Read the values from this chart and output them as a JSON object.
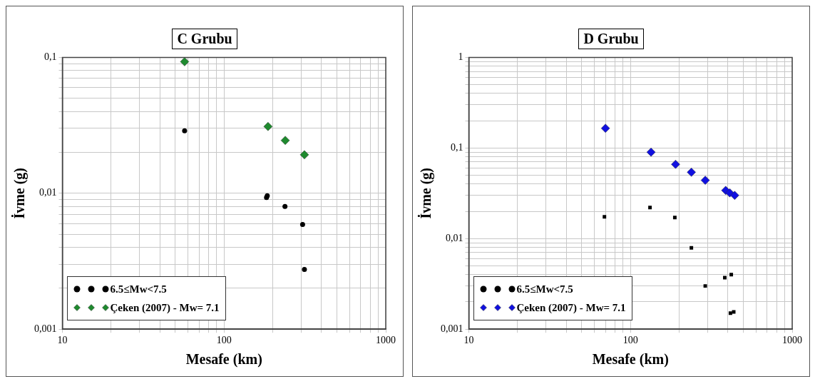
{
  "chart_data": [
    {
      "type": "scatter",
      "title": "C Grubu",
      "xlabel": "Mesafe (km)",
      "ylabel": "İvme (g)",
      "log": "xy",
      "grid": true,
      "legend": "bottom left",
      "xlim": [
        10,
        1000
      ],
      "xticks": [
        10,
        100,
        1000
      ],
      "ylim": [
        0.001,
        0.1
      ],
      "yticks": [
        {
          "value": 0.001,
          "label": "0,001"
        },
        {
          "value": 0.01,
          "label": "0,01"
        },
        {
          "value": 0.1,
          "label": "0,1"
        }
      ],
      "series": [
        {
          "name": "6.5≤Mw<7.5",
          "color": "#000000",
          "marker": "circle",
          "x": [
            57,
            183,
            185,
            238,
            306,
            314
          ],
          "values": [
            0.0288,
            0.0093,
            0.0096,
            0.008,
            0.0059,
            0.00275
          ]
        },
        {
          "name": "Çeken (2007) - Mw= 7.1",
          "color": "#1e8a2e",
          "marker": "diamond",
          "x": [
            57,
            187,
            239,
            314
          ],
          "values": [
            0.093,
            0.031,
            0.0245,
            0.0192
          ]
        }
      ]
    },
    {
      "type": "scatter",
      "title": "D Grubu",
      "xlabel": "Mesafe (km)",
      "ylabel": "İvme (g)",
      "log": "xy",
      "grid": true,
      "legend": "bottom left",
      "xlim": [
        10,
        1000
      ],
      "xticks": [
        10,
        100,
        1000
      ],
      "ylim": [
        0.001,
        1
      ],
      "yticks": [
        {
          "value": 0.001,
          "label": "0,001"
        },
        {
          "value": 0.01,
          "label": "0,01"
        },
        {
          "value": 0.1,
          "label": "0,1"
        },
        1
      ],
      "series": [
        {
          "name": "6.5≤Mw<7.5",
          "color": "#000000",
          "marker": "square",
          "x": [
            69,
            132,
            188,
            238,
            290,
            383,
            420,
            415,
            435
          ],
          "values": [
            0.0174,
            0.022,
            0.0171,
            0.0079,
            0.003,
            0.0037,
            0.004,
            0.0015,
            0.00155
          ]
        },
        {
          "name": "Çeken (2007) - Mw= 7.1",
          "color": "#1010e0",
          "marker": "diamond",
          "x": [
            70,
            134,
            190,
            238,
            290,
            388,
            411,
            441
          ],
          "values": [
            0.165,
            0.09,
            0.066,
            0.054,
            0.044,
            0.034,
            0.032,
            0.03
          ]
        }
      ]
    }
  ]
}
